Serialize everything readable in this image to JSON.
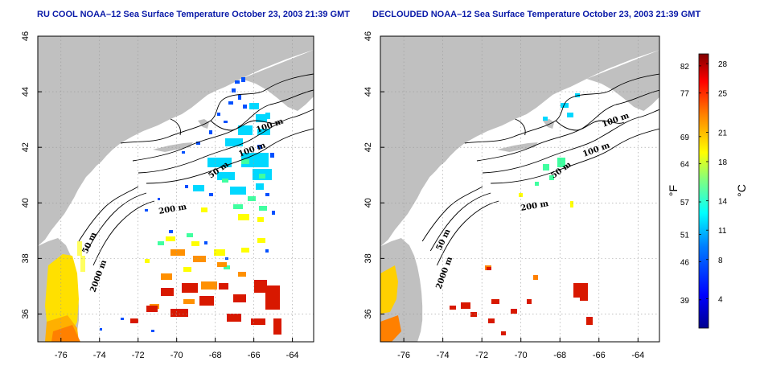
{
  "panels": [
    {
      "title": "RU COOL NOAA–12 Sea Surface Temperature October 23, 2003 21:39 GMT",
      "contour_labels": [
        "100 m",
        "100 m",
        "50 m",
        "200 m",
        "50 m",
        "2000 m"
      ]
    },
    {
      "title": "DECLOUDED NOAA–12 Sea Surface Temperature October 23, 2003 21:39 GMT",
      "contour_labels": [
        "100 m",
        "100 m",
        "50 m",
        "200 m",
        "50 m",
        "2000 m"
      ]
    }
  ],
  "axes": {
    "lon_ticks": [
      "-76",
      "-74",
      "-72",
      "-70",
      "-68",
      "-66",
      "-64"
    ],
    "lat_ticks": [
      "46",
      "44",
      "42",
      "40",
      "38",
      "36"
    ],
    "lon_range": [
      -77.2,
      -62.9
    ],
    "lat_range": [
      35.0,
      46.0
    ],
    "grid": "dotted"
  },
  "colorbar": {
    "fahrenheit_ticks": [
      "82",
      "77",
      "69",
      "64",
      "57",
      "51",
      "46",
      "39"
    ],
    "celsius_ticks": [
      "28",
      "25",
      "21",
      "18",
      "14",
      "11",
      "8",
      "4"
    ],
    "fahrenheit_unit": "°F",
    "celsius_unit": "°C",
    "range_c": [
      1,
      29
    ],
    "colors": [
      "#00008f",
      "#0000ff",
      "#0080ff",
      "#00ffff",
      "#80ff80",
      "#ffff00",
      "#ff8000",
      "#ff0000",
      "#800000"
    ]
  },
  "colors": {
    "land": "#c0c0c0",
    "ocean": "#ffffff",
    "title": "#0a1aa8"
  }
}
